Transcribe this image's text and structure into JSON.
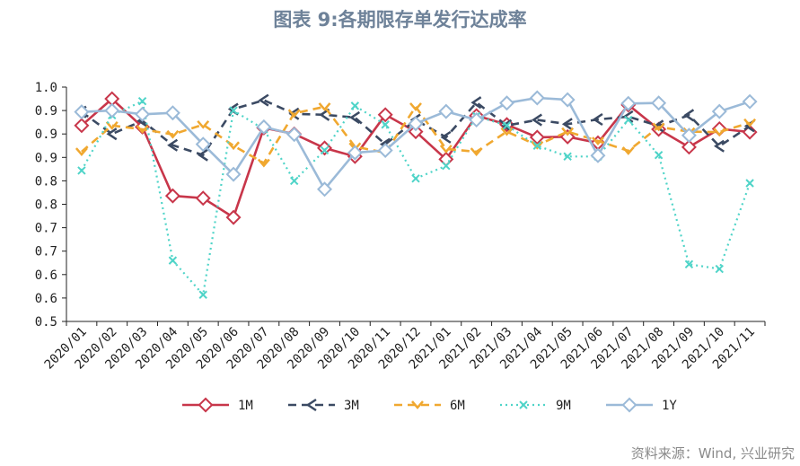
{
  "title": "图表 9:各期限存单发行达成率",
  "source": "资料来源：Wind, 兴业研究",
  "chart_data": {
    "type": "line",
    "title": "图表 9:各期限存单发行达成率",
    "x": [
      "2020/01",
      "2020/02",
      "2020/03",
      "2020/04",
      "2020/05",
      "2020/06",
      "2020/07",
      "2020/08",
      "2020/09",
      "2020/10",
      "2020/11",
      "2020/12",
      "2021/01",
      "2021/02",
      "2021/03",
      "2021/04",
      "2021/05",
      "2021/06",
      "2021/07",
      "2021/08",
      "2021/09",
      "2021/10",
      "2021/11"
    ],
    "ylim": [
      0.5,
      1.0
    ],
    "yticks": [
      0.5,
      0.55,
      0.6,
      0.65,
      0.7,
      0.75,
      0.8,
      0.85,
      0.9,
      0.95,
      1.0
    ],
    "ytick_labels": [
      "0.5",
      "0.6",
      "0.6",
      "0.7",
      "0.7",
      "0.8",
      "0.8",
      "0.9",
      "0.9",
      "0.9",
      "1.0"
    ],
    "legend_position": "bottom",
    "grid": false,
    "series": [
      {
        "name": "1M",
        "color": "#c8364a",
        "style": "solid",
        "values": [
          0.918,
          0.975,
          0.915,
          0.768,
          0.763,
          0.722,
          0.913,
          0.9,
          0.87,
          0.852,
          0.941,
          0.905,
          0.846,
          0.939,
          0.92,
          0.893,
          0.894,
          0.881,
          0.962,
          0.91,
          0.872,
          0.911,
          0.904
        ]
      },
      {
        "name": "3M",
        "color": "#3b4a63",
        "style": "dashed",
        "values": [
          0.947,
          0.9,
          0.928,
          0.876,
          0.855,
          0.953,
          0.972,
          0.943,
          0.941,
          0.935,
          0.878,
          0.93,
          0.893,
          0.967,
          0.918,
          0.93,
          0.921,
          0.931,
          0.937,
          0.917,
          0.94,
          0.874,
          0.917
        ]
      },
      {
        "name": "6M",
        "color": "#f0a830",
        "style": "dashed",
        "values": [
          0.862,
          0.918,
          0.91,
          0.899,
          0.92,
          0.875,
          0.838,
          0.944,
          0.958,
          0.873,
          0.86,
          0.958,
          0.868,
          0.862,
          0.905,
          0.876,
          0.905,
          0.885,
          0.864,
          0.915,
          0.905,
          0.904,
          0.924
        ]
      },
      {
        "name": "9M",
        "color": "#4fd4c8",
        "style": "dotted",
        "values": [
          0.822,
          0.94,
          0.97,
          0.63,
          0.557,
          0.95,
          0.91,
          0.8,
          0.865,
          0.96,
          0.92,
          0.805,
          0.832,
          0.938,
          0.918,
          0.875,
          0.852,
          0.852,
          0.93,
          0.855,
          0.622,
          0.612,
          0.795
        ]
      },
      {
        "name": "1Y",
        "color": "#9bbad8",
        "style": "solid",
        "values": [
          0.947,
          0.95,
          0.942,
          0.945,
          0.878,
          0.814,
          0.915,
          0.899,
          0.782,
          0.86,
          0.865,
          0.922,
          0.948,
          0.93,
          0.966,
          0.977,
          0.973,
          0.854,
          0.965,
          0.966,
          0.897,
          0.948,
          0.969
        ]
      }
    ]
  }
}
